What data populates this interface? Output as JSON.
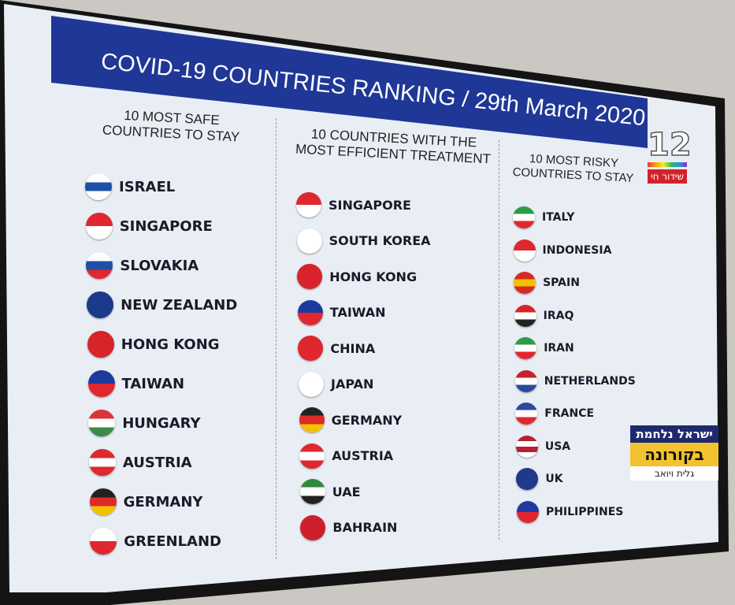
{
  "title": "COVID-19 COUNTRIES RANKING / 29th March 2020",
  "columns": [
    {
      "header": "10 MOST SAFE COUNTRIES TO STAY",
      "items": [
        {
          "name": "ISRAEL",
          "flag": [
            "#ffffff",
            "#1d4fa6",
            "#ffffff"
          ]
        },
        {
          "name": "SINGAPORE",
          "flag": [
            "#e0262f",
            "#ffffff"
          ]
        },
        {
          "name": "SLOVAKIA",
          "flag": [
            "#ffffff",
            "#1f4fa3",
            "#e0262f"
          ]
        },
        {
          "name": "NEW ZEALAND",
          "flag": [
            "#1c3a8a"
          ]
        },
        {
          "name": "HONG KONG",
          "flag": [
            "#d8232a"
          ]
        },
        {
          "name": "TAIWAN",
          "flag": [
            "#1c3a9e",
            "#e0262f"
          ]
        },
        {
          "name": "HUNGARY",
          "flag": [
            "#d8343a",
            "#ffffff",
            "#3c8a48"
          ]
        },
        {
          "name": "AUSTRIA",
          "flag": [
            "#e0262f",
            "#ffffff",
            "#e0262f"
          ]
        },
        {
          "name": "GERMANY",
          "flag": [
            "#222222",
            "#dd2a2a",
            "#f2c200"
          ]
        },
        {
          "name": "GREENLAND",
          "flag": [
            "#ffffff",
            "#e0262f"
          ]
        }
      ]
    },
    {
      "header": "10 COUNTRIES WITH THE MOST EFFICIENT TREATMENT",
      "items": [
        {
          "name": "SINGAPORE",
          "flag": [
            "#e0262f",
            "#ffffff"
          ]
        },
        {
          "name": "SOUTH KOREA",
          "flag": [
            "#ffffff"
          ]
        },
        {
          "name": "HONG KONG",
          "flag": [
            "#d8232a"
          ]
        },
        {
          "name": "TAIWAN",
          "flag": [
            "#1c3a9e",
            "#e0262f"
          ]
        },
        {
          "name": "CHINA",
          "flag": [
            "#e0262f"
          ]
        },
        {
          "name": "JAPAN",
          "flag": [
            "#ffffff"
          ]
        },
        {
          "name": "GERMANY",
          "flag": [
            "#222222",
            "#dd2a2a",
            "#f2c200"
          ]
        },
        {
          "name": "AUSTRIA",
          "flag": [
            "#e0262f",
            "#ffffff",
            "#e0262f"
          ]
        },
        {
          "name": "UAE",
          "flag": [
            "#2f8a3e",
            "#ffffff",
            "#222222"
          ]
        },
        {
          "name": "BAHRAIN",
          "flag": [
            "#ce1f2c"
          ]
        }
      ]
    },
    {
      "header": "10 MOST RISKY COUNTRIES TO STAY",
      "items": [
        {
          "name": "ITALY",
          "flag": [
            "#2f9a45",
            "#ffffff",
            "#e0262f"
          ]
        },
        {
          "name": "INDONESIA",
          "flag": [
            "#e0262f",
            "#ffffff"
          ]
        },
        {
          "name": "SPAIN",
          "flag": [
            "#d82a20",
            "#f2c200",
            "#d82a20"
          ]
        },
        {
          "name": "IRAQ",
          "flag": [
            "#d8232a",
            "#ffffff",
            "#222222"
          ]
        },
        {
          "name": "IRAN",
          "flag": [
            "#2f9a45",
            "#ffffff",
            "#e0262f"
          ]
        },
        {
          "name": "NETHERLANDS",
          "flag": [
            "#c8202a",
            "#ffffff",
            "#2a4a9a"
          ]
        },
        {
          "name": "FRANCE",
          "flag": [
            "#2a4aa0",
            "#ffffff",
            "#e0262f"
          ]
        },
        {
          "name": "USA",
          "flag": [
            "#b22234",
            "#ffffff",
            "#b22234",
            "#ffffff"
          ]
        },
        {
          "name": "UK",
          "flag": [
            "#1f3a8a"
          ]
        },
        {
          "name": "PHILIPPINES",
          "flag": [
            "#1f3aa0",
            "#e0262f"
          ]
        }
      ]
    }
  ],
  "logo": {
    "number": "12",
    "tag": "שידור חי"
  },
  "badge": {
    "line1": "ישראל נלחמת",
    "line2": "בקורונה",
    "line3": "גלית ויואב"
  },
  "colors": {
    "banner": "#1f3796",
    "screen": "#e8eef6",
    "badge_yellow": "#f2c230",
    "logo_red": "#d2232a"
  }
}
